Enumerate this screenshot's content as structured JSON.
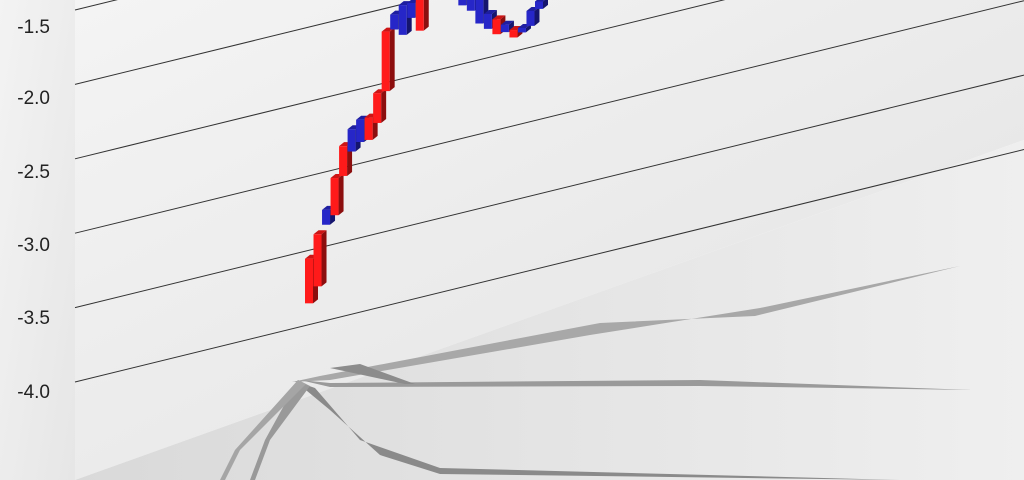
{
  "chart_data": {
    "type": "candlestick-3d",
    "title": "",
    "ylabel": "",
    "xlabel": "",
    "ylim": [
      -4.0,
      -1.5
    ],
    "y_ticks": [
      "-1.5",
      "-2.0",
      "-2.5",
      "-3.0",
      "-3.5",
      "-4.0"
    ],
    "y_tick_values": [
      -1.5,
      -2.0,
      -2.5,
      -3.0,
      -3.5,
      -4.0
    ],
    "grid": true,
    "series": [
      {
        "colors": {
          "up": "#ff1a1a",
          "down": "#2626c8"
        },
        "candles": [
          {
            "open": -3.85,
            "close": -3.55,
            "dir": "up"
          },
          {
            "open": -3.75,
            "close": -3.4,
            "dir": "up"
          },
          {
            "open": -3.35,
            "close": -3.25,
            "dir": "down"
          },
          {
            "open": -3.3,
            "close": -3.05,
            "dir": "up"
          },
          {
            "open": -3.05,
            "close": -2.85,
            "dir": "up"
          },
          {
            "open": -2.9,
            "close": -2.75,
            "dir": "down"
          },
          {
            "open": -2.85,
            "close": -2.7,
            "dir": "down"
          },
          {
            "open": -2.85,
            "close": -2.7,
            "dir": "up"
          },
          {
            "open": -2.75,
            "close": -2.55,
            "dir": "up"
          },
          {
            "open": -2.55,
            "close": -2.15,
            "dir": "up"
          },
          {
            "open": -2.15,
            "close": -2.05,
            "dir": "down"
          },
          {
            "open": -2.2,
            "close": -2.0,
            "dir": "down"
          },
          {
            "open": -2.1,
            "close": -2.0,
            "dir": "down"
          },
          {
            "open": -2.2,
            "close": -1.95,
            "dir": "up"
          },
          {
            "open": -2.0,
            "close": -1.7,
            "dir": "up"
          },
          {
            "open": -1.55,
            "close": -1.65,
            "dir": "down"
          },
          {
            "open": -1.7,
            "close": -1.75,
            "dir": "down"
          },
          {
            "open": -1.8,
            "close": -1.85,
            "dir": "down"
          },
          {
            "open": -1.85,
            "close": -2.1,
            "dir": "down"
          },
          {
            "open": -2.0,
            "close": -2.15,
            "dir": "down"
          },
          {
            "open": -2.0,
            "close": -2.25,
            "dir": "down"
          },
          {
            "open": -2.2,
            "close": -2.3,
            "dir": "down"
          },
          {
            "open": -2.25,
            "close": -2.35,
            "dir": "up"
          },
          {
            "open": -2.3,
            "close": -2.35,
            "dir": "down"
          },
          {
            "open": -2.35,
            "close": -2.4,
            "dir": "up"
          },
          {
            "open": -2.35,
            "close": -2.38,
            "dir": "down"
          },
          {
            "open": -2.25,
            "close": -2.35,
            "dir": "down"
          },
          {
            "open": -2.2,
            "close": -2.25,
            "dir": "down"
          }
        ]
      }
    ]
  }
}
